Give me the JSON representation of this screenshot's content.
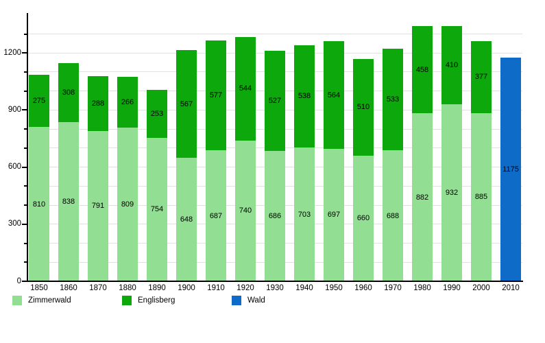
{
  "chart_data": {
    "type": "bar",
    "stacked": true,
    "title": "",
    "xlabel": "",
    "ylabel": "",
    "categories": [
      "1850",
      "1860",
      "1870",
      "1880",
      "1890",
      "1900",
      "1910",
      "1920",
      "1930",
      "1940",
      "1950",
      "1960",
      "1970",
      "1980",
      "1990",
      "2000",
      "2010"
    ],
    "series": [
      {
        "name": "Zimmerwald",
        "color": "#92de92",
        "values": [
          810,
          838,
          791,
          809,
          754,
          648,
          687,
          740,
          686,
          703,
          697,
          660,
          688,
          882,
          932,
          885,
          null
        ]
      },
      {
        "name": "Englisberg",
        "color": "#0ca80c",
        "values": [
          275,
          308,
          288,
          266,
          253,
          567,
          577,
          544,
          527,
          538,
          564,
          510,
          533,
          458,
          410,
          377,
          null
        ]
      },
      {
        "name": "Wald",
        "color": "#0e6cc8",
        "values": [
          null,
          null,
          null,
          null,
          null,
          null,
          null,
          null,
          null,
          null,
          null,
          null,
          null,
          null,
          null,
          null,
          1175
        ]
      }
    ],
    "ylim": [
      0,
      1410
    ],
    "ytick_labeled": [
      0,
      300,
      600,
      900,
      1200
    ],
    "ytick_minor_step": 100,
    "grid": "horizontal",
    "gridline_color": "#e1e1e1",
    "bar_label_color": "#000000",
    "legend_position": "bottom-left",
    "background_color": "#ffffff"
  }
}
